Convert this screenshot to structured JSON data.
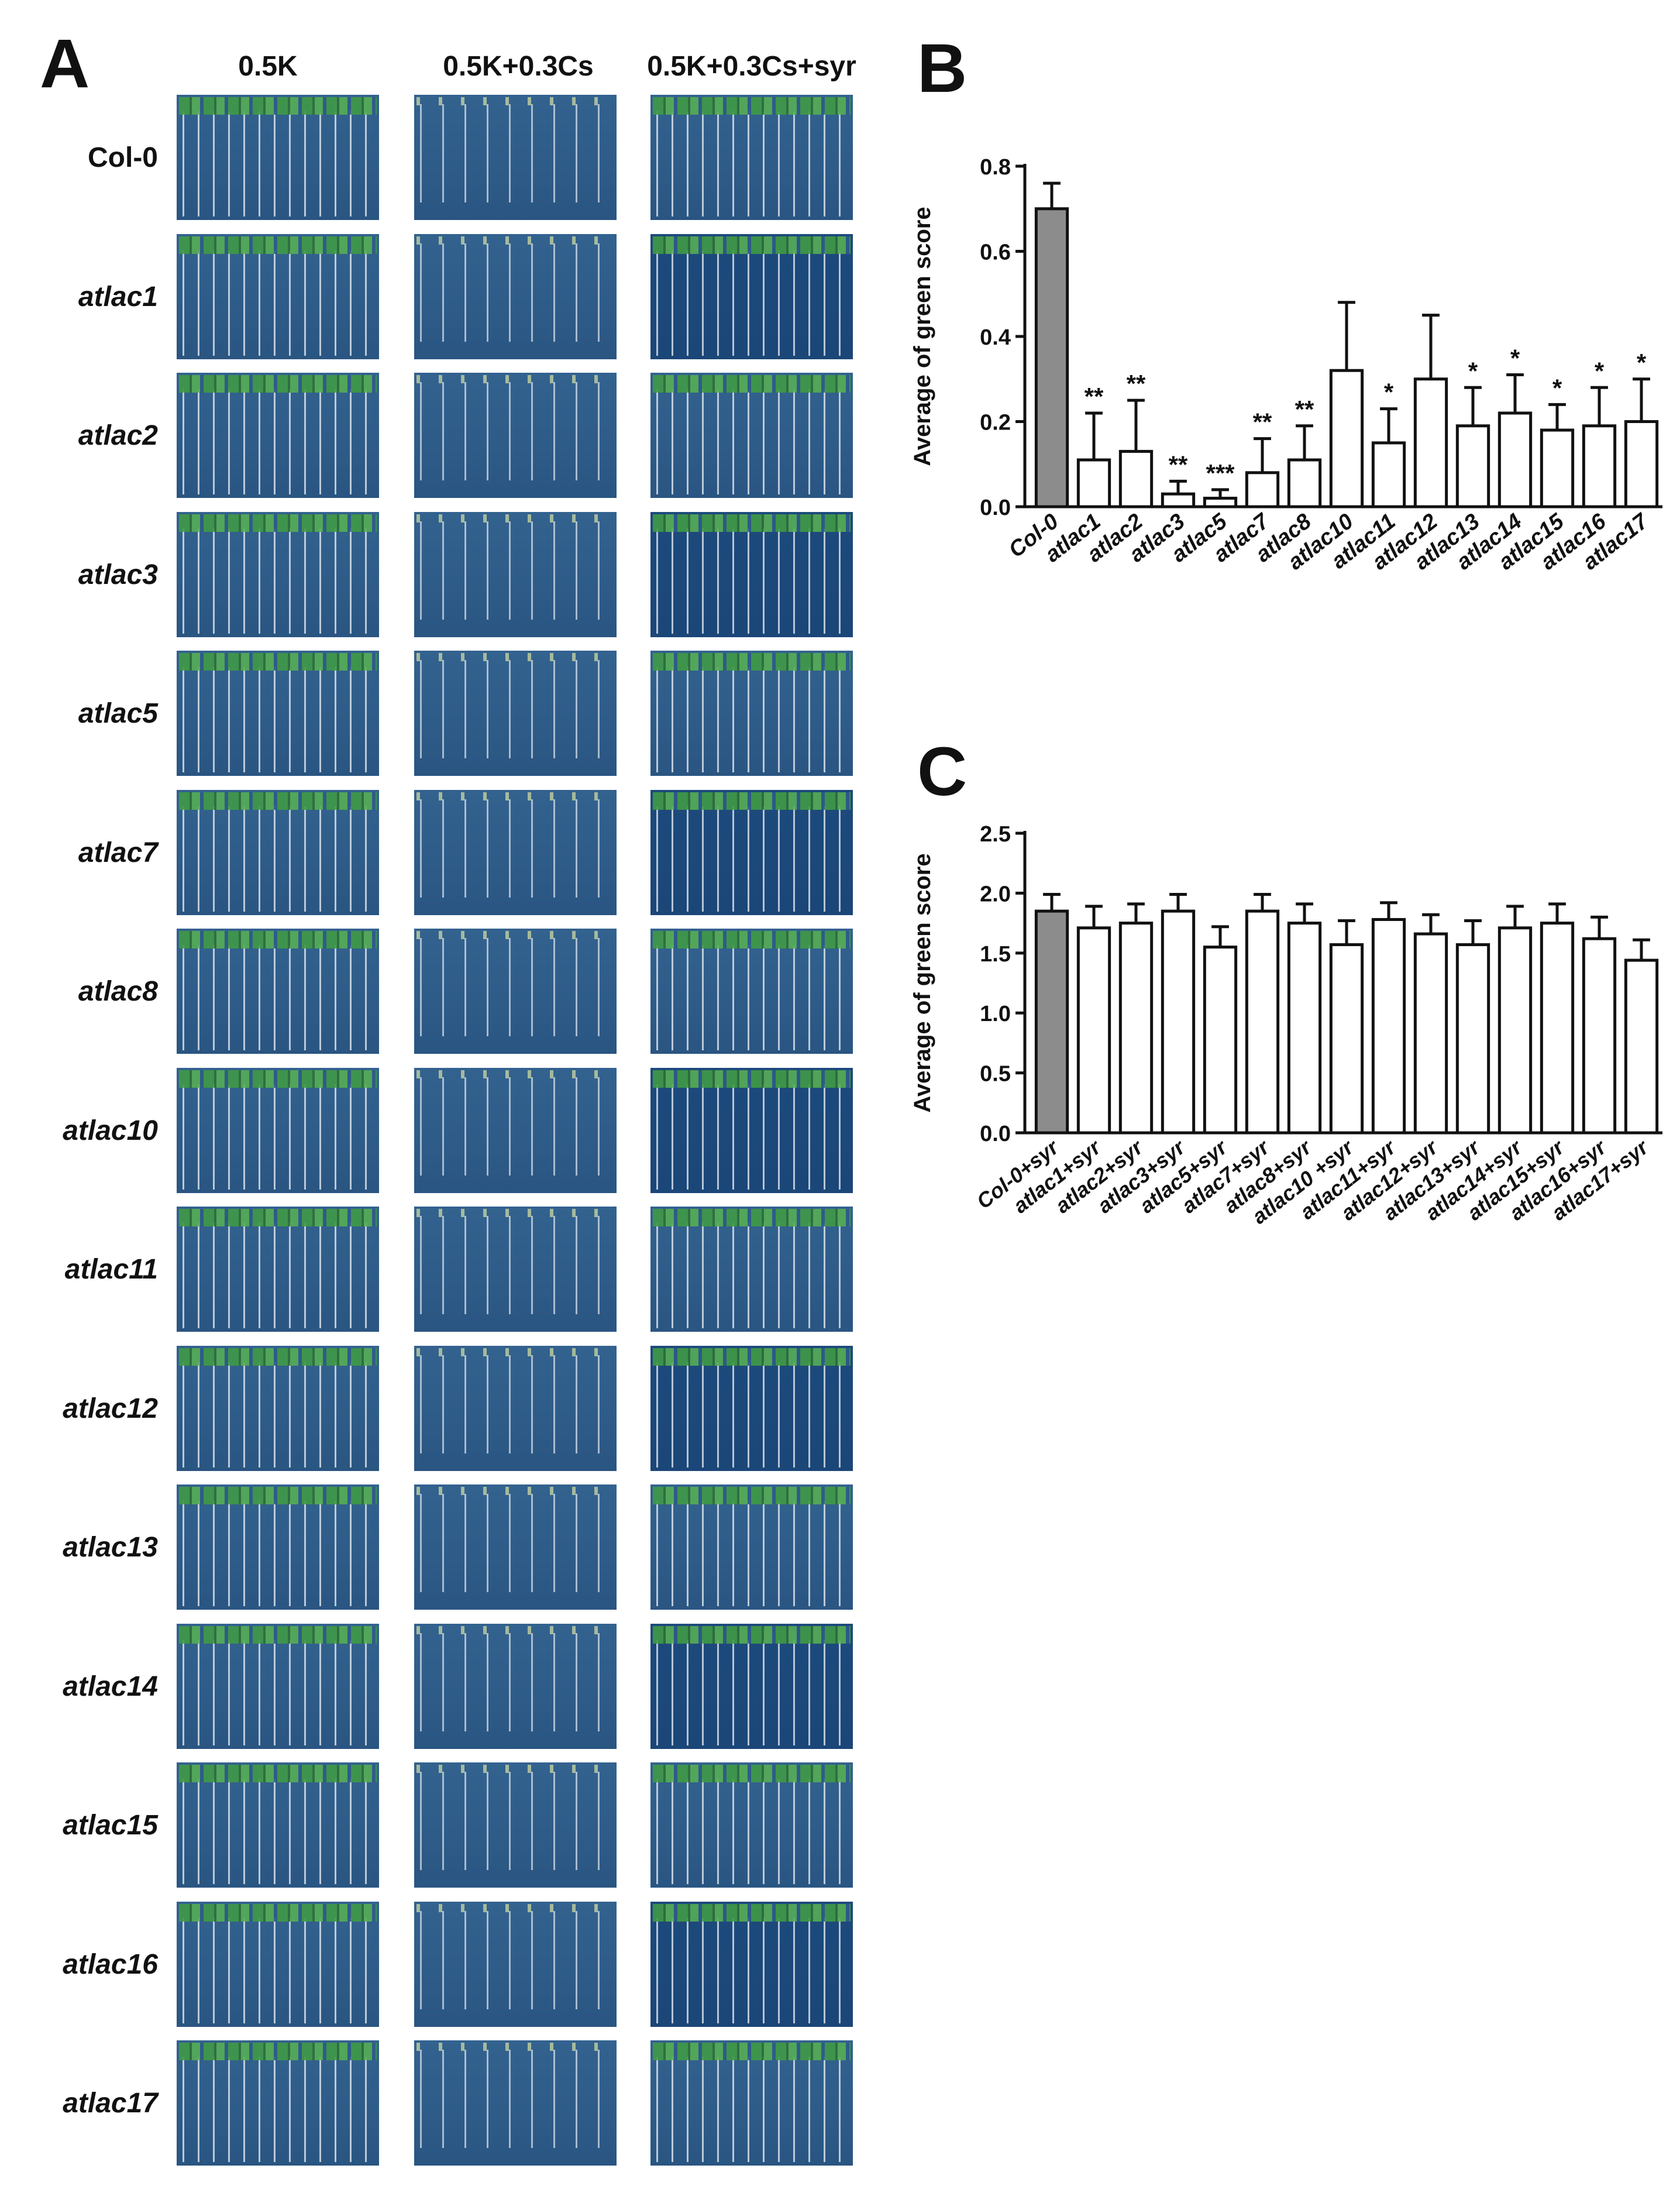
{
  "panels": {
    "a": "A",
    "b": "B",
    "c": "C"
  },
  "photo_grid": {
    "columns": [
      "0.5K",
      "0.5K+0.3Cs",
      "0.5K+0.3Cs+syr"
    ],
    "rows": [
      "Col-0",
      "atlac1",
      "atlac2",
      "atlac3",
      "atlac5",
      "atlac7",
      "atlac8",
      "atlac10",
      "atlac11",
      "atlac12",
      "atlac13",
      "atlac14",
      "atlac15",
      "atlac16",
      "atlac17"
    ]
  },
  "chart_data": [
    {
      "type": "bar",
      "panel": "B",
      "categories": [
        "Col-0",
        "atlac1",
        "atlac2",
        "atlac3",
        "atlac5",
        "atlac7",
        "atlac8",
        "atlac10",
        "atlac11",
        "atlac12",
        "atlac13",
        "atlac14",
        "atlac15",
        "atlac16",
        "atlac17"
      ],
      "values": [
        0.7,
        0.11,
        0.13,
        0.03,
        0.02,
        0.08,
        0.11,
        0.32,
        0.15,
        0.3,
        0.19,
        0.22,
        0.18,
        0.19,
        0.2
      ],
      "errors": [
        0.06,
        0.11,
        0.12,
        0.03,
        0.02,
        0.08,
        0.08,
        0.16,
        0.08,
        0.15,
        0.09,
        0.09,
        0.06,
        0.09,
        0.1
      ],
      "significance": [
        "",
        "**",
        "**",
        "**",
        "***",
        "**",
        "**",
        "",
        "*",
        "",
        "*",
        "*",
        "*",
        "*",
        "*"
      ],
      "ylabel": "Average of green score",
      "ylim": [
        0,
        0.8
      ],
      "yticks": [
        "0.0",
        "0.2",
        "0.4",
        "0.6",
        "0.8"
      ],
      "bar_colors": {
        "control": "#8c8c8c",
        "mutant": "#ffffff",
        "stroke": "#111111"
      }
    },
    {
      "type": "bar",
      "panel": "C",
      "categories": [
        "Col-0+syr",
        "atlac1+syr",
        "atlac2+syr",
        "atlac3+syr",
        "atlac5+syr",
        "atlac7+syr",
        "atlac8+syr",
        "atlac10 +syr",
        "atlac11+syr",
        "atlac12+syr",
        "atlac13+syr",
        "atlac14+syr",
        "atlac15+syr",
        "atlac16+syr",
        "atlac17+syr"
      ],
      "values": [
        1.85,
        1.71,
        1.75,
        1.85,
        1.55,
        1.85,
        1.75,
        1.57,
        1.78,
        1.66,
        1.57,
        1.71,
        1.75,
        1.62,
        1.44
      ],
      "errors": [
        0.14,
        0.18,
        0.16,
        0.14,
        0.17,
        0.14,
        0.16,
        0.2,
        0.14,
        0.16,
        0.2,
        0.18,
        0.16,
        0.18,
        0.17
      ],
      "ylabel": "Average of green score",
      "ylim": [
        0,
        2.5
      ],
      "yticks": [
        "0.0",
        "0.5",
        "1.0",
        "1.5",
        "2.0",
        "2.5"
      ],
      "bar_colors": {
        "control": "#8c8c8c",
        "mutant": "#ffffff",
        "stroke": "#111111"
      }
    }
  ]
}
